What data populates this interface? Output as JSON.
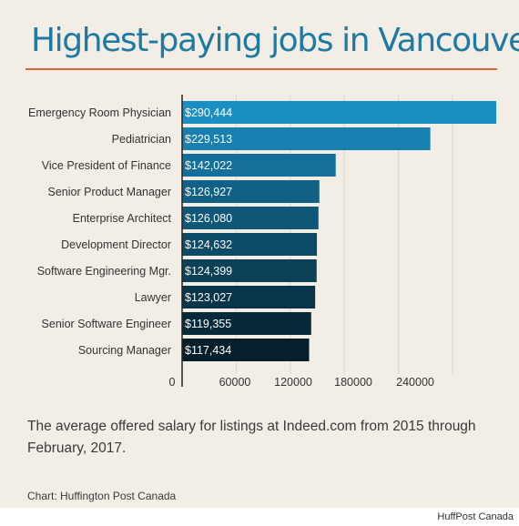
{
  "header": {
    "title": "Highest-paying jobs in Vancouver"
  },
  "caption": "The average offered salary for listings at Indeed.com from 2015 through February, 2017.",
  "source": "Chart: Huffington Post Canada",
  "credit": "HuffPost Canada",
  "colors": {
    "background": "#f2ede5",
    "title": "#1f7aa3",
    "rule": "#d9643e",
    "bar_top": "#1b8fc4",
    "bar_bottom": "#071a22"
  },
  "chart_data": {
    "type": "bar",
    "orientation": "horizontal",
    "title": "Highest-paying jobs in Vancouver",
    "categories": [
      "Emergency Room Physician",
      "Pediatrician",
      "Vice President of Finance",
      "Senior Product Manager",
      "Enterprise Architect",
      "Development Director",
      "Software Engineering Mgr.",
      "Lawyer",
      "Senior Software Engineer",
      "Sourcing Manager"
    ],
    "values": [
      290444,
      229513,
      142022,
      126927,
      126080,
      124632,
      124399,
      123027,
      119355,
      117434
    ],
    "data_labels": [
      "$290,444",
      "$229,513",
      "$142,022",
      "$126,927",
      "$126,080",
      "$124,632",
      "$124,399",
      "$123,027",
      "$119,355",
      "$117,434"
    ],
    "bar_colors": [
      "#1b8fc4",
      "#1880b0",
      "#146f9b",
      "#116086",
      "#0f5677",
      "#0d4b68",
      "#0b4059",
      "#09354a",
      "#072a3b",
      "#061f2c"
    ],
    "xticks": [
      0,
      60000,
      120000,
      180000,
      240000
    ],
    "xtick_labels": [
      "0",
      "60000",
      "120000",
      "180000",
      "240000"
    ],
    "xlim": [
      0,
      290444
    ],
    "grid": true,
    "legend": "none"
  }
}
